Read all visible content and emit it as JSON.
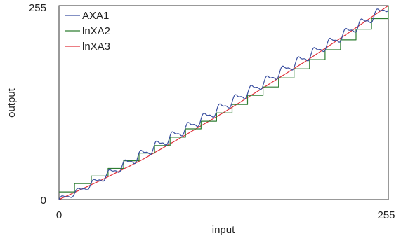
{
  "chart_data": {
    "type": "line",
    "title": "",
    "xlabel": "input",
    "ylabel": "output",
    "xlim": [
      0,
      255
    ],
    "ylim": [
      0,
      255
    ],
    "x_ticks": [
      "0",
      "255"
    ],
    "y_ticks": [
      "0",
      "255"
    ],
    "grid": false,
    "legend_position": "top-left",
    "series": [
      {
        "name": "AXA1",
        "color": "#3a4fa0",
        "style": "oscillating saw around the straight reference",
        "x": [
          0,
          8,
          16,
          24,
          32,
          40,
          48,
          56,
          64,
          72,
          80,
          88,
          96,
          104,
          112,
          120,
          128,
          136,
          144,
          152,
          160,
          168,
          176,
          184,
          192,
          200,
          208,
          216,
          224,
          232,
          240,
          248,
          255
        ],
        "values": [
          0,
          5,
          12,
          19,
          27,
          35,
          43,
          51,
          59,
          67,
          75,
          83,
          91,
          99,
          107,
          115,
          123,
          131,
          139,
          147,
          155,
          164,
          172,
          180,
          188,
          196,
          204,
          212,
          221,
          229,
          237,
          246,
          255
        ]
      },
      {
        "name": "lnXA2",
        "color": "#2e7d32",
        "style": "staircase",
        "x": [
          0,
          12,
          25,
          38,
          50,
          62,
          74,
          86,
          98,
          110,
          122,
          134,
          146,
          158,
          170,
          182,
          194,
          206,
          218,
          230,
          242,
          255
        ],
        "values": [
          10,
          21,
          31,
          41,
          51,
          61,
          71,
          82,
          93,
          103,
          114,
          125,
          137,
          148,
          160,
          172,
          184,
          197,
          210,
          224,
          238,
          255
        ]
      },
      {
        "name": "lnXA3",
        "color": "#e0303a",
        "style": "smooth curve",
        "x": [
          0,
          32,
          64,
          96,
          128,
          160,
          192,
          224,
          255
        ],
        "values": [
          0,
          25,
          52,
          83,
          115,
          149,
          183,
          219,
          255
        ]
      }
    ]
  }
}
